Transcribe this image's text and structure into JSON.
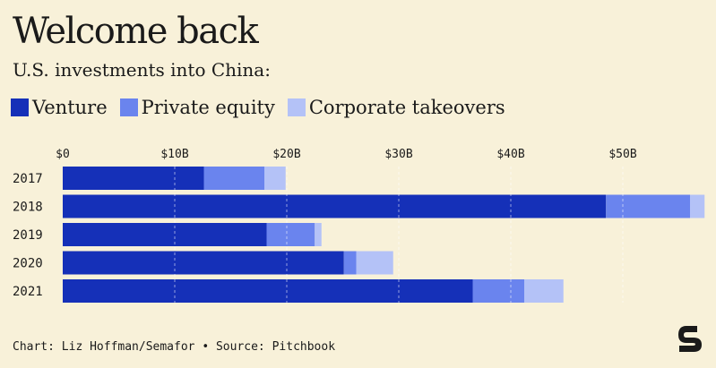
{
  "title": "Welcome back",
  "subtitle": "U.S. investments into China:",
  "legend": [
    {
      "label": "Venture",
      "color": "#1530b8"
    },
    {
      "label": "Private equity",
      "color": "#6a84ee"
    },
    {
      "label": "Corporate takeovers",
      "color": "#b4c2f7"
    }
  ],
  "footer": "Chart: Liz Hoffman/Semafor • Source: Pitchbook",
  "logo_text": "S",
  "chart_data": {
    "type": "bar",
    "orientation": "horizontal",
    "stacked": true,
    "categories": [
      "2017",
      "2018",
      "2019",
      "2020",
      "2021"
    ],
    "series": [
      {
        "name": "Venture",
        "values": [
          12.6,
          48.5,
          18.2,
          25.1,
          36.6
        ]
      },
      {
        "name": "Private equity",
        "values": [
          5.4,
          7.5,
          4.3,
          1.1,
          4.6
        ]
      },
      {
        "name": "Corporate takeovers",
        "values": [
          1.9,
          1.3,
          0.6,
          3.3,
          3.5
        ]
      }
    ],
    "x_ticks": [
      "$0",
      "$10B",
      "$20B",
      "$30B",
      "$40B",
      "$50B"
    ],
    "x_tick_values": [
      0,
      10,
      20,
      30,
      40,
      50
    ],
    "xlim": [
      0,
      57
    ],
    "grid": true,
    "legend_position": "top-left"
  }
}
